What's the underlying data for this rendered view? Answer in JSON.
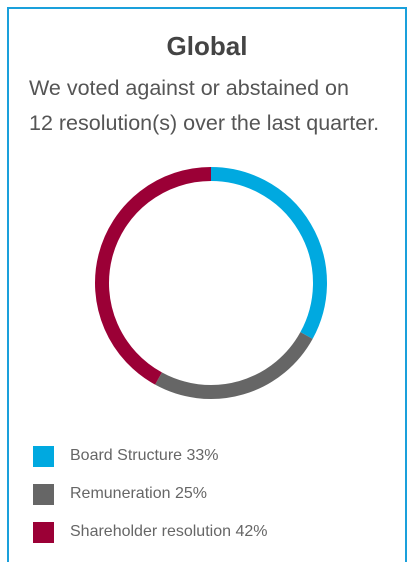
{
  "panel": {
    "title": "Global",
    "description_line1": "We voted against or abstained on",
    "description_line2": "12 resolution(s) over the last quarter.",
    "border_color": "#1aa0db"
  },
  "chart_data": {
    "type": "pie",
    "style": "donut",
    "title": "",
    "legend_position": "bottom-left",
    "series": [
      {
        "name": "Board Structure",
        "value": 33,
        "color": "#00a9e0"
      },
      {
        "name": "Remuneration",
        "value": 25,
        "color": "#666666"
      },
      {
        "name": "Shareholder resolution",
        "value": 42,
        "color": "#9b0036"
      }
    ]
  },
  "legend": [
    {
      "label": "Board Structure 33%"
    },
    {
      "label": "Remuneration 25%"
    },
    {
      "label": "Shareholder resolution 42%"
    }
  ]
}
